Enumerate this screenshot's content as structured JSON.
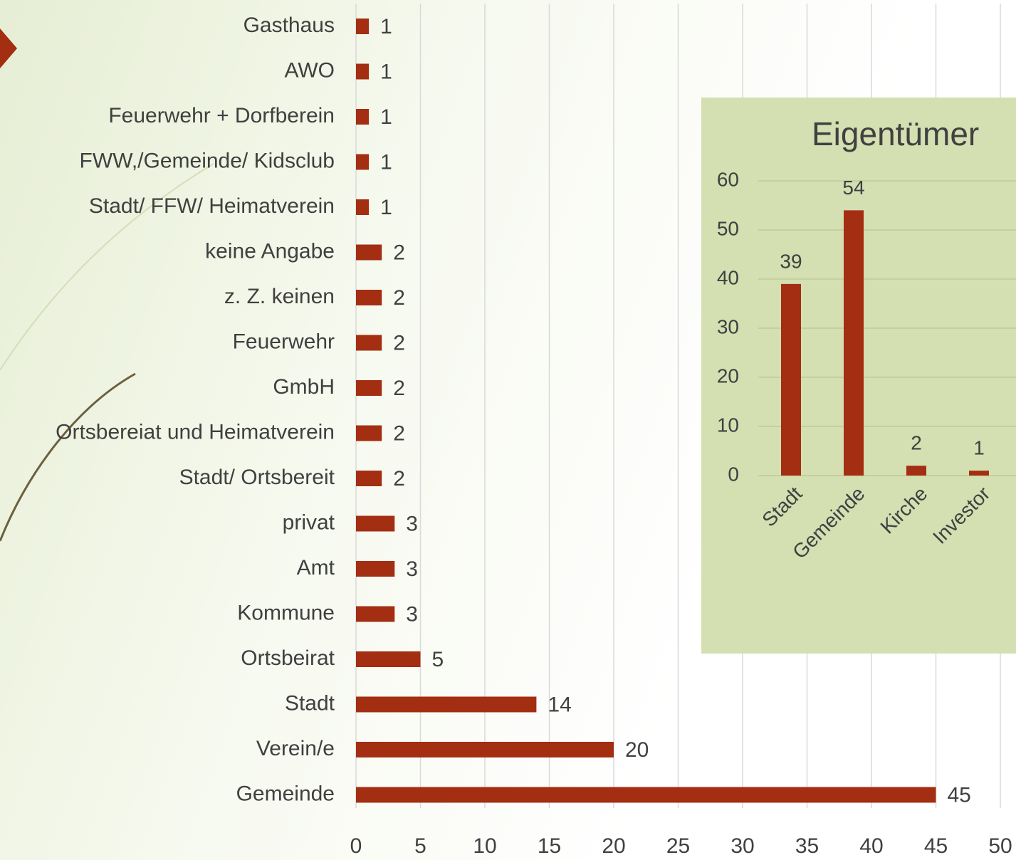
{
  "chart_data": [
    {
      "type": "barh",
      "categories": [
        "Gasthaus",
        "AWO",
        "Feuerwehr + Dorfberein",
        "FWW,/Gemeinde/ Kidsclub",
        "Stadt/ FFW/ Heimatverein",
        "keine Angabe",
        "z. Z.  keinen",
        "Feuerwehr",
        "GmbH",
        "Ortsbereiat und Heimatverein",
        "Stadt/ Ortsbereit",
        "privat",
        "Amt",
        "Kommune",
        "Ortsbeirat",
        "Stadt",
        "Verein/e",
        "Gemeinde"
      ],
      "values": [
        1,
        1,
        1,
        1,
        1,
        2,
        2,
        2,
        2,
        2,
        2,
        3,
        3,
        3,
        5,
        14,
        20,
        45
      ],
      "color": "#a32e12",
      "xlim": [
        0,
        50
      ],
      "xticks": [
        0,
        5,
        10,
        15,
        20,
        25,
        30,
        35,
        40,
        45,
        50
      ],
      "grid": true
    },
    {
      "type": "bar",
      "title": "Eigentümer",
      "categories": [
        "Stadt",
        "Gemeinde",
        "Kirche",
        "Investor"
      ],
      "values": [
        39,
        54,
        2,
        1
      ],
      "color": "#a32e12",
      "ylim": [
        0,
        60
      ],
      "yticks": [
        0,
        10,
        20,
        30,
        40,
        50,
        60
      ],
      "grid": true
    }
  ]
}
